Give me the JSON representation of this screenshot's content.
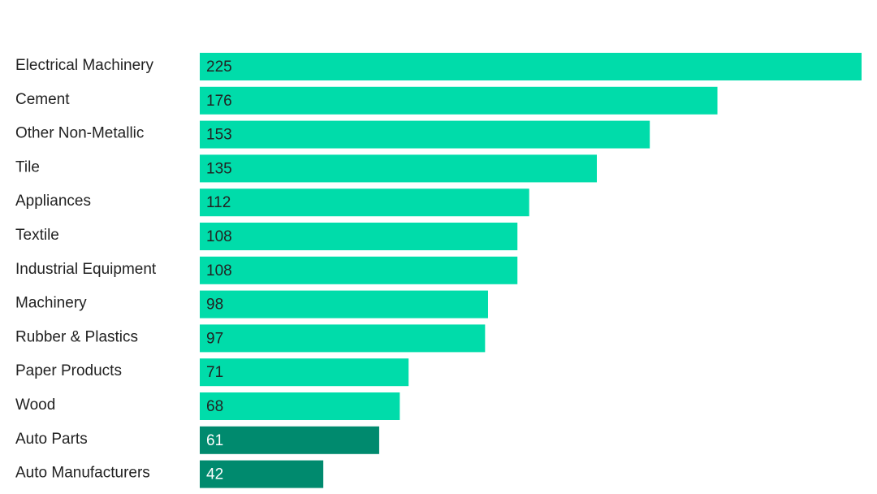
{
  "chart_data": {
    "type": "bar",
    "orientation": "horizontal",
    "categories": [
      "Electrical Machinery",
      "Cement",
      "Other Non-Metallic",
      "Tile",
      "Appliances",
      "Textile",
      "Industrial Equipment",
      "Machinery",
      "Rubber & Plastics",
      "Paper Products",
      "Wood",
      "Auto Parts",
      "Auto Manufacturers"
    ],
    "values": [
      225,
      176,
      153,
      135,
      112,
      108,
      108,
      98,
      97,
      71,
      68,
      61,
      42
    ],
    "colors": [
      "#00dcaa",
      "#00dcaa",
      "#00dcaa",
      "#00dcaa",
      "#00dcaa",
      "#00dcaa",
      "#00dcaa",
      "#00dcaa",
      "#00dcaa",
      "#00dcaa",
      "#00dcaa",
      "#008a6e",
      "#008a6e"
    ]
  }
}
